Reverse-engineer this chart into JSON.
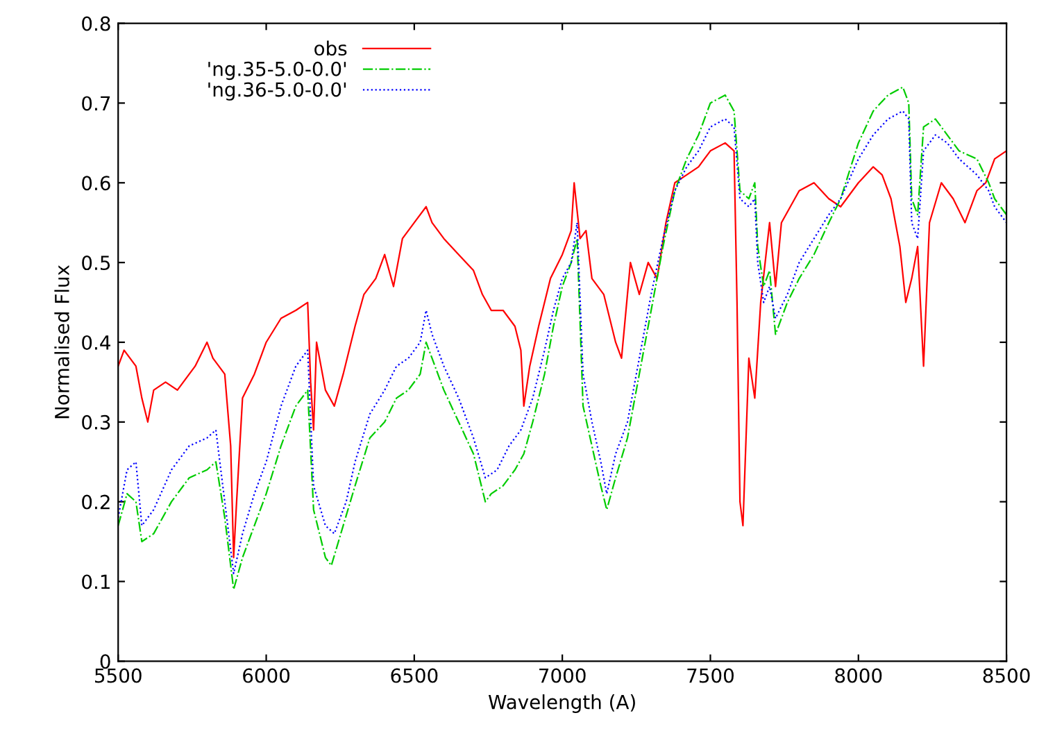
{
  "chart_data": {
    "type": "line",
    "xlabel": "Wavelength (A)",
    "ylabel": "Normalised Flux",
    "xlim": [
      5500,
      8500
    ],
    "xticks": [
      5500,
      6000,
      6500,
      7000,
      7500,
      8000,
      8500
    ],
    "ylim": [
      0,
      0.8
    ],
    "yticks": [
      0,
      0.1,
      0.2,
      0.3,
      0.4,
      0.5,
      0.6,
      0.7,
      0.8
    ],
    "grid": false,
    "legend": "top left",
    "marker": "none",
    "series": [
      {
        "name": "obs",
        "color": "#ff0000",
        "line_style": "solid",
        "x": [
          5500,
          5520,
          5560,
          5580,
          5600,
          5620,
          5660,
          5700,
          5760,
          5800,
          5820,
          5860,
          5880,
          5890,
          5900,
          5920,
          5960,
          6000,
          6050,
          6100,
          6140,
          6150,
          6160,
          6170,
          6200,
          6230,
          6260,
          6300,
          6330,
          6370,
          6400,
          6430,
          6460,
          6500,
          6540,
          6560,
          6600,
          6650,
          6700,
          6730,
          6760,
          6800,
          6840,
          6860,
          6870,
          6890,
          6920,
          6960,
          7000,
          7030,
          7040,
          7060,
          7080,
          7100,
          7140,
          7180,
          7200,
          7230,
          7260,
          7290,
          7320,
          7350,
          7380,
          7420,
          7460,
          7500,
          7550,
          7580,
          7590,
          7600,
          7610,
          7630,
          7650,
          7670,
          7700,
          7720,
          7740,
          7800,
          7850,
          7900,
          7940,
          8000,
          8050,
          8080,
          8110,
          8140,
          8160,
          8180,
          8200,
          8220,
          8240,
          8280,
          8320,
          8360,
          8400,
          8430,
          8460,
          8500
        ],
        "values": [
          0.37,
          0.39,
          0.37,
          0.33,
          0.3,
          0.34,
          0.35,
          0.34,
          0.37,
          0.4,
          0.38,
          0.36,
          0.27,
          0.13,
          0.2,
          0.33,
          0.36,
          0.4,
          0.43,
          0.44,
          0.45,
          0.35,
          0.29,
          0.4,
          0.34,
          0.32,
          0.36,
          0.42,
          0.46,
          0.48,
          0.51,
          0.47,
          0.53,
          0.55,
          0.57,
          0.55,
          0.53,
          0.51,
          0.49,
          0.46,
          0.44,
          0.44,
          0.42,
          0.39,
          0.32,
          0.37,
          0.42,
          0.48,
          0.51,
          0.54,
          0.6,
          0.53,
          0.54,
          0.48,
          0.46,
          0.4,
          0.38,
          0.5,
          0.46,
          0.5,
          0.48,
          0.55,
          0.6,
          0.61,
          0.62,
          0.64,
          0.65,
          0.64,
          0.45,
          0.2,
          0.17,
          0.38,
          0.33,
          0.45,
          0.55,
          0.47,
          0.55,
          0.59,
          0.6,
          0.58,
          0.57,
          0.6,
          0.62,
          0.61,
          0.58,
          0.52,
          0.45,
          0.48,
          0.52,
          0.37,
          0.55,
          0.6,
          0.58,
          0.55,
          0.59,
          0.6,
          0.63,
          0.64
        ]
      },
      {
        "name": "'ng.35-5.0-0.0'",
        "color": "#00cc00",
        "line_style": "dashed",
        "x": [
          5500,
          5530,
          5560,
          5580,
          5620,
          5680,
          5740,
          5800,
          5830,
          5860,
          5890,
          5920,
          5960,
          6000,
          6050,
          6100,
          6140,
          6160,
          6200,
          6220,
          6260,
          6300,
          6350,
          6400,
          6440,
          6480,
          6520,
          6540,
          6560,
          6600,
          6650,
          6700,
          6740,
          6760,
          6800,
          6840,
          6870,
          6900,
          6940,
          6970,
          7000,
          7030,
          7050,
          7070,
          7100,
          7130,
          7150,
          7180,
          7220,
          7260,
          7300,
          7340,
          7380,
          7420,
          7460,
          7500,
          7550,
          7580,
          7600,
          7630,
          7650,
          7660,
          7680,
          7700,
          7720,
          7760,
          7800,
          7850,
          7900,
          7940,
          8000,
          8050,
          8100,
          8150,
          8170,
          8180,
          8200,
          8220,
          8260,
          8300,
          8340,
          8400,
          8440,
          8460,
          8500
        ],
        "values": [
          0.17,
          0.21,
          0.2,
          0.15,
          0.16,
          0.2,
          0.23,
          0.24,
          0.25,
          0.18,
          0.09,
          0.13,
          0.17,
          0.21,
          0.27,
          0.32,
          0.34,
          0.19,
          0.13,
          0.12,
          0.17,
          0.22,
          0.28,
          0.3,
          0.33,
          0.34,
          0.36,
          0.4,
          0.38,
          0.34,
          0.3,
          0.26,
          0.2,
          0.21,
          0.22,
          0.24,
          0.26,
          0.3,
          0.36,
          0.42,
          0.47,
          0.5,
          0.53,
          0.32,
          0.27,
          0.22,
          0.19,
          0.23,
          0.28,
          0.36,
          0.44,
          0.52,
          0.59,
          0.63,
          0.66,
          0.7,
          0.71,
          0.69,
          0.59,
          0.58,
          0.6,
          0.52,
          0.47,
          0.49,
          0.41,
          0.45,
          0.48,
          0.51,
          0.55,
          0.58,
          0.65,
          0.69,
          0.71,
          0.72,
          0.7,
          0.58,
          0.56,
          0.67,
          0.68,
          0.66,
          0.64,
          0.63,
          0.6,
          0.58,
          0.56
        ]
      },
      {
        "name": "'ng.36-5.0-0.0'",
        "color": "#0000ff",
        "line_style": "dotted",
        "x": [
          5500,
          5530,
          5560,
          5580,
          5620,
          5680,
          5740,
          5800,
          5830,
          5860,
          5890,
          5920,
          5960,
          6000,
          6050,
          6100,
          6140,
          6160,
          6200,
          6230,
          6270,
          6300,
          6350,
          6400,
          6440,
          6480,
          6520,
          6540,
          6560,
          6600,
          6650,
          6700,
          6740,
          6780,
          6820,
          6860,
          6900,
          6940,
          6970,
          7000,
          7030,
          7050,
          7070,
          7100,
          7130,
          7150,
          7180,
          7220,
          7260,
          7300,
          7340,
          7380,
          7420,
          7460,
          7500,
          7550,
          7580,
          7600,
          7630,
          7650,
          7660,
          7680,
          7700,
          7720,
          7760,
          7800,
          7850,
          7900,
          7940,
          8000,
          8050,
          8100,
          8150,
          8170,
          8180,
          8200,
          8220,
          8260,
          8300,
          8340,
          8400,
          8440,
          8460,
          8500
        ],
        "values": [
          0.18,
          0.24,
          0.25,
          0.17,
          0.19,
          0.24,
          0.27,
          0.28,
          0.29,
          0.2,
          0.11,
          0.16,
          0.21,
          0.25,
          0.32,
          0.37,
          0.39,
          0.22,
          0.17,
          0.16,
          0.2,
          0.25,
          0.31,
          0.34,
          0.37,
          0.38,
          0.4,
          0.44,
          0.41,
          0.37,
          0.33,
          0.28,
          0.23,
          0.24,
          0.27,
          0.29,
          0.33,
          0.39,
          0.44,
          0.48,
          0.5,
          0.55,
          0.36,
          0.3,
          0.25,
          0.21,
          0.26,
          0.3,
          0.38,
          0.46,
          0.53,
          0.59,
          0.62,
          0.64,
          0.67,
          0.68,
          0.67,
          0.58,
          0.57,
          0.58,
          0.5,
          0.45,
          0.47,
          0.43,
          0.46,
          0.5,
          0.53,
          0.56,
          0.58,
          0.63,
          0.66,
          0.68,
          0.69,
          0.68,
          0.55,
          0.53,
          0.64,
          0.66,
          0.65,
          0.63,
          0.61,
          0.59,
          0.57,
          0.55
        ]
      }
    ]
  }
}
